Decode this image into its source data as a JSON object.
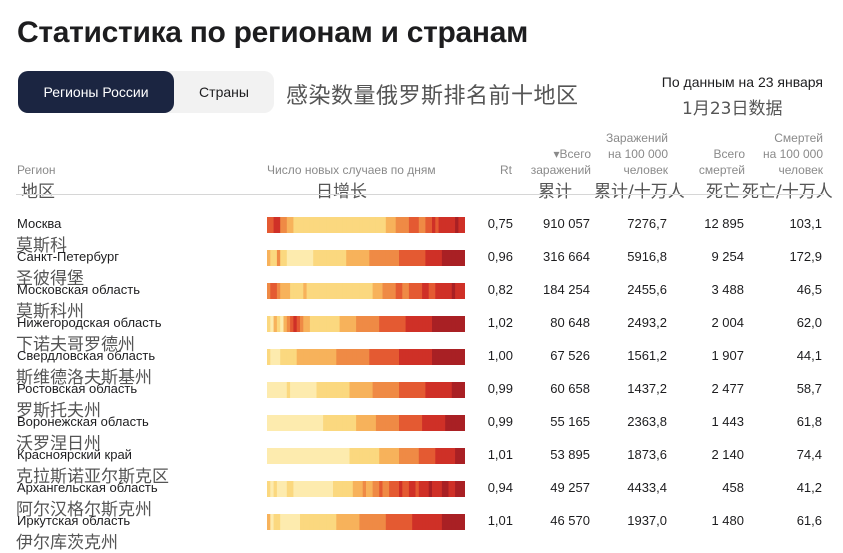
{
  "title": "Статистика по регионам и странам",
  "tabs": [
    {
      "label": "Регионы России",
      "active": true
    },
    {
      "label": "Страны",
      "active": false
    }
  ],
  "subtitle_cn": "感染数量俄罗斯排名前十地区",
  "data_note": "По данным на 23 января",
  "data_note_cn": "1月23日数据",
  "headers": {
    "region": "Регион",
    "region_cn": "地区",
    "daily": "Число новых случаев по дням",
    "daily_cn": "日增长",
    "rt": "Rt",
    "total_line1": "▾Всего",
    "total_line2": "заражений",
    "total_cn": "累计",
    "per100_line1": "Заражений",
    "per100_line2": "на 100 000",
    "per100_line3": "человек",
    "per100_cn": "累计/十万人",
    "deaths_line1": "Всего",
    "deaths_line2": "смертей",
    "deaths_cn": "死亡",
    "dper100_line1": "Смертей",
    "dper100_line2": "на 100 000",
    "dper100_line3": "человек",
    "dper100_cn": "死亡/十万人"
  },
  "heat_colors": [
    "#fdebae",
    "#fbd87f",
    "#f7b25b",
    "#ef8a45",
    "#e45a32",
    "#cf3027",
    "#a92024"
  ],
  "rows": [
    {
      "name": "Москва",
      "name_cn": "莫斯科",
      "rt": "0,75",
      "total": "910 057",
      "per100": "7276,7",
      "deaths": "12 895",
      "dper100": "103,1",
      "heat": [
        4,
        4,
        5,
        5,
        3,
        3,
        2,
        2,
        1,
        1,
        1,
        1,
        1,
        1,
        1,
        1,
        1,
        1,
        1,
        1,
        1,
        1,
        1,
        1,
        1,
        1,
        1,
        1,
        1,
        1,
        1,
        1,
        1,
        1,
        1,
        1,
        2,
        2,
        2,
        3,
        3,
        3,
        3,
        4,
        4,
        4,
        3,
        3,
        4,
        4,
        5,
        4,
        5,
        5,
        5,
        5,
        5,
        6,
        5,
        5
      ]
    },
    {
      "name": "Санкт-Петербург",
      "name_cn": "圣彼得堡",
      "rt": "0,96",
      "total": "316 664",
      "per100": "5916,8",
      "deaths": "9 254",
      "dper100": "172,9",
      "heat": [
        2,
        1,
        1,
        3,
        1,
        1,
        0,
        0,
        0,
        0,
        0,
        0,
        0,
        0,
        1,
        1,
        1,
        1,
        1,
        1,
        1,
        1,
        1,
        1,
        2,
        2,
        2,
        2,
        2,
        2,
        2,
        3,
        3,
        3,
        3,
        3,
        3,
        3,
        3,
        3,
        4,
        4,
        4,
        4,
        4,
        4,
        4,
        4,
        5,
        5,
        5,
        5,
        5,
        6,
        6,
        6,
        6,
        6,
        6,
        6
      ]
    },
    {
      "name": "Московская область",
      "name_cn": "莫斯科州",
      "rt": "0,82",
      "total": "184 254",
      "per100": "2455,6",
      "deaths": "3 488",
      "dper100": "46,5",
      "heat": [
        3,
        4,
        4,
        3,
        2,
        2,
        2,
        1,
        1,
        1,
        1,
        2,
        1,
        1,
        1,
        1,
        1,
        1,
        1,
        1,
        1,
        1,
        1,
        1,
        1,
        1,
        1,
        1,
        1,
        1,
        1,
        1,
        2,
        2,
        2,
        3,
        3,
        3,
        3,
        4,
        4,
        3,
        3,
        4,
        4,
        4,
        4,
        5,
        5,
        4,
        4,
        5,
        5,
        5,
        5,
        5,
        6,
        5,
        5,
        5
      ]
    },
    {
      "name": "Нижегородская область",
      "name_cn": "下诺夫哥罗德州",
      "rt": "1,02",
      "total": "80 648",
      "per100": "2493,2",
      "deaths": "2 004",
      "dper100": "62,0",
      "heat": [
        1,
        0,
        2,
        1,
        0,
        2,
        3,
        4,
        5,
        4,
        3,
        2,
        2,
        1,
        1,
        1,
        1,
        1,
        1,
        1,
        1,
        1,
        2,
        2,
        2,
        2,
        2,
        3,
        3,
        3,
        3,
        3,
        3,
        3,
        4,
        4,
        4,
        4,
        4,
        4,
        4,
        4,
        5,
        5,
        5,
        5,
        5,
        5,
        5,
        5,
        6,
        6,
        6,
        6,
        6,
        6,
        6,
        6,
        6,
        6
      ]
    },
    {
      "name": "Свердловская область",
      "name_cn": "斯维德洛夫斯基州",
      "rt": "1,00",
      "total": "67 526",
      "per100": "1561,2",
      "deaths": "1 907",
      "dper100": "44,1",
      "heat": [
        1,
        0,
        0,
        0,
        1,
        1,
        1,
        1,
        1,
        2,
        2,
        2,
        2,
        2,
        2,
        2,
        2,
        2,
        2,
        2,
        2,
        3,
        3,
        3,
        3,
        3,
        3,
        3,
        3,
        3,
        3,
        4,
        4,
        4,
        4,
        4,
        4,
        4,
        4,
        4,
        5,
        5,
        5,
        5,
        5,
        5,
        5,
        5,
        5,
        5,
        6,
        6,
        6,
        6,
        6,
        6,
        6,
        6,
        6,
        6
      ]
    },
    {
      "name": "Ростовская область",
      "name_cn": "罗斯托夫州",
      "rt": "0,99",
      "total": "60 658",
      "per100": "1437,2",
      "deaths": "2 477",
      "dper100": "58,7",
      "heat": [
        0,
        0,
        0,
        0,
        0,
        0,
        1,
        0,
        0,
        0,
        0,
        0,
        0,
        0,
        0,
        1,
        1,
        1,
        1,
        1,
        1,
        1,
        1,
        1,
        1,
        2,
        2,
        2,
        2,
        2,
        2,
        2,
        3,
        3,
        3,
        3,
        3,
        3,
        3,
        3,
        4,
        4,
        4,
        4,
        4,
        4,
        4,
        4,
        5,
        5,
        5,
        5,
        5,
        5,
        5,
        5,
        6,
        6,
        6,
        6
      ]
    },
    {
      "name": "Воронежская область",
      "name_cn": "沃罗涅日州",
      "rt": "0,99",
      "total": "55 165",
      "per100": "2363,8",
      "deaths": "1 443",
      "dper100": "61,8",
      "heat": [
        0,
        0,
        0,
        0,
        0,
        0,
        0,
        0,
        0,
        0,
        0,
        0,
        0,
        0,
        0,
        0,
        0,
        1,
        1,
        1,
        1,
        1,
        1,
        1,
        1,
        1,
        1,
        2,
        2,
        2,
        2,
        2,
        2,
        3,
        3,
        3,
        3,
        3,
        3,
        3,
        4,
        4,
        4,
        4,
        4,
        4,
        4,
        5,
        5,
        5,
        5,
        5,
        5,
        5,
        6,
        6,
        6,
        6,
        6,
        6
      ]
    },
    {
      "name": "Красноярский край",
      "name_cn": "克拉斯诺亚尔斯克区",
      "rt": "1,01",
      "total": "53 895",
      "per100": "1873,6",
      "deaths": "2 140",
      "dper100": "74,4",
      "heat": [
        0,
        0,
        0,
        0,
        0,
        0,
        0,
        0,
        0,
        0,
        0,
        0,
        0,
        0,
        0,
        0,
        0,
        0,
        0,
        0,
        0,
        0,
        0,
        0,
        0,
        1,
        1,
        1,
        1,
        1,
        1,
        1,
        1,
        1,
        2,
        2,
        2,
        2,
        2,
        2,
        3,
        3,
        3,
        3,
        3,
        3,
        4,
        4,
        4,
        4,
        4,
        5,
        5,
        5,
        5,
        5,
        5,
        6,
        6,
        6
      ]
    },
    {
      "name": "Архангельская область",
      "name_cn": "阿尔汉格尔斯克州",
      "rt": "0,94",
      "total": "49 257",
      "per100": "4433,4",
      "deaths": "458",
      "dper100": "41,2",
      "heat": [
        1,
        0,
        1,
        0,
        0,
        0,
        1,
        1,
        0,
        0,
        0,
        0,
        0,
        0,
        0,
        0,
        0,
        0,
        0,
        0,
        1,
        1,
        1,
        1,
        1,
        1,
        2,
        2,
        2,
        3,
        2,
        2,
        3,
        3,
        4,
        3,
        3,
        4,
        4,
        4,
        5,
        4,
        4,
        5,
        5,
        4,
        5,
        5,
        5,
        6,
        5,
        5,
        5,
        6,
        6,
        5,
        5,
        6,
        6,
        6
      ]
    },
    {
      "name": "Иркутская область",
      "name_cn": "伊尔库茨克州",
      "rt": "1,01",
      "total": "46 570",
      "per100": "1937,0",
      "deaths": "1 480",
      "dper100": "61,6",
      "heat": [
        2,
        0,
        1,
        1,
        0,
        0,
        0,
        0,
        0,
        0,
        1,
        1,
        1,
        1,
        1,
        1,
        1,
        1,
        1,
        1,
        1,
        2,
        2,
        2,
        2,
        2,
        2,
        2,
        3,
        3,
        3,
        3,
        3,
        3,
        3,
        3,
        4,
        4,
        4,
        4,
        4,
        4,
        4,
        4,
        5,
        5,
        5,
        5,
        5,
        5,
        5,
        5,
        5,
        6,
        6,
        6,
        6,
        6,
        6,
        6
      ]
    }
  ]
}
